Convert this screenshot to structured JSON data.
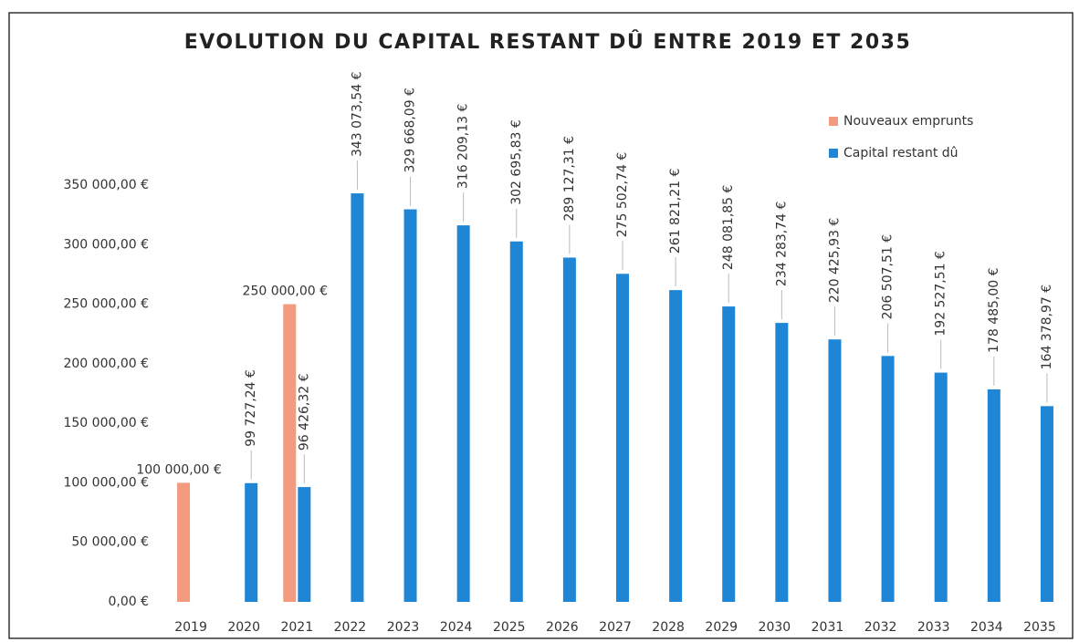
{
  "chart_data": {
    "type": "bar",
    "title": "EVOLUTION DU CAPITAL RESTANT DÛ ENTRE 2019 ET 2035",
    "categories": [
      "2019",
      "2020",
      "2021",
      "2022",
      "2023",
      "2024",
      "2025",
      "2026",
      "2027",
      "2028",
      "2029",
      "2030",
      "2031",
      "2032",
      "2033",
      "2034",
      "2035"
    ],
    "series": [
      {
        "name": "Nouveaux emprunts",
        "color": "#f29b7e",
        "values": [
          100000,
          null,
          250000,
          null,
          null,
          null,
          null,
          null,
          null,
          null,
          null,
          null,
          null,
          null,
          null,
          null,
          null
        ],
        "value_labels": [
          "100 000,00 €",
          null,
          "250 000,00 €",
          null,
          null,
          null,
          null,
          null,
          null,
          null,
          null,
          null,
          null,
          null,
          null,
          null,
          null
        ]
      },
      {
        "name": "Capital restant dû",
        "color": "#1e86d5",
        "values": [
          null,
          99727.24,
          96426.32,
          343073.54,
          329668.09,
          316209.13,
          302695.83,
          289127.31,
          275502.74,
          261821.21,
          248081.85,
          234283.74,
          220425.93,
          206507.51,
          192527.51,
          178485.0,
          164378.97
        ],
        "value_labels": [
          null,
          "99 727,24 €",
          "96 426,32 €",
          "343 073,54 €",
          "329 668,09 €",
          "316 209,13 €",
          "302 695,83 €",
          "289 127,31 €",
          "275 502,74 €",
          "261 821,21 €",
          "248 081,85 €",
          "234 283,74 €",
          "220 425,93 €",
          "206 507,51 €",
          "192 527,51 €",
          "178 485,00 €",
          "164 378,97 €"
        ]
      }
    ],
    "ylim": [
      0,
      350000
    ],
    "yticks": [
      {
        "value": 0,
        "label": "0,00 €"
      },
      {
        "value": 50000,
        "label": "50 000,00 €"
      },
      {
        "value": 100000,
        "label": "100 000,00 €"
      },
      {
        "value": 150000,
        "label": "150 000,00 €"
      },
      {
        "value": 200000,
        "label": "200 000,00 €"
      },
      {
        "value": 250000,
        "label": "250 000,00 €"
      },
      {
        "value": 300000,
        "label": "300 000,00 €"
      },
      {
        "value": 350000,
        "label": "350 000,00 €"
      }
    ],
    "grid": false,
    "legend": "top-right"
  }
}
